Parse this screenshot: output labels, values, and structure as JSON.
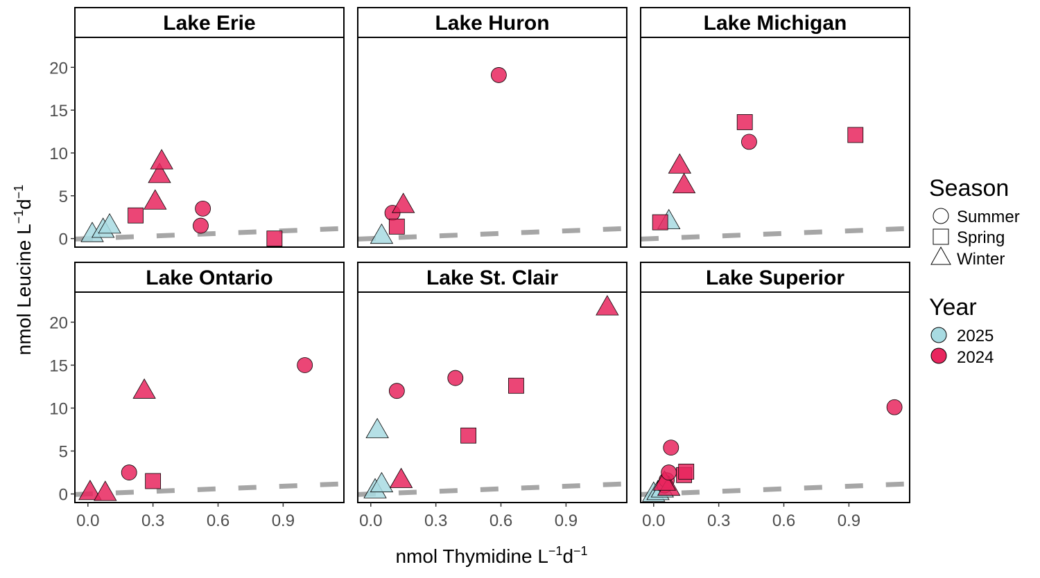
{
  "chart_data": {
    "type": "scatter",
    "xlabel": {
      "base": "nmol Thymidine L",
      "sup1": "−1",
      "mid": "d",
      "sup2": "−1"
    },
    "ylabel": {
      "base": "nmol Leucine L",
      "sup1": "−1",
      "mid": "d",
      "sup2": "−1"
    },
    "xlim": [
      -0.06,
      1.18
    ],
    "ylim": [
      -1.0,
      23.5
    ],
    "x_ticks": [
      "0.0",
      "0.3",
      "0.6",
      "0.9"
    ],
    "x_tick_values": [
      0.0,
      0.3,
      0.6,
      0.9
    ],
    "y_ticks": [
      "0",
      "5",
      "10",
      "15",
      "20"
    ],
    "y_tick_values": [
      0,
      5,
      10,
      15,
      20
    ],
    "reference_line": {
      "style": "dashed",
      "color": "#a6a6a6",
      "intercept": 0.0,
      "slope": 1.0
    },
    "legend": {
      "season_title": "Season",
      "season_items": [
        {
          "label": "Summer",
          "shape": "circle"
        },
        {
          "label": "Spring",
          "shape": "square"
        },
        {
          "label": "Winter",
          "shape": "triangle"
        }
      ],
      "year_title": "Year",
      "year_items": [
        {
          "label": "2025",
          "color": "#a8dbe2"
        },
        {
          "label": "2024",
          "color": "#e8265e"
        }
      ]
    },
    "panels": [
      {
        "title": "Lake Erie",
        "points": [
          {
            "x": 0.02,
            "y": 0.6,
            "season": "Winter",
            "year": "2025"
          },
          {
            "x": 0.07,
            "y": 1.1,
            "season": "Winter",
            "year": "2025"
          },
          {
            "x": 0.1,
            "y": 1.6,
            "season": "Winter",
            "year": "2025"
          },
          {
            "x": 0.22,
            "y": 2.7,
            "season": "Spring",
            "year": "2024"
          },
          {
            "x": 0.31,
            "y": 4.4,
            "season": "Winter",
            "year": "2024"
          },
          {
            "x": 0.33,
            "y": 7.5,
            "season": "Winter",
            "year": "2024"
          },
          {
            "x": 0.34,
            "y": 9.1,
            "season": "Winter",
            "year": "2024"
          },
          {
            "x": 0.52,
            "y": 1.5,
            "season": "Summer",
            "year": "2024"
          },
          {
            "x": 0.53,
            "y": 3.5,
            "season": "Summer",
            "year": "2024"
          },
          {
            "x": 0.86,
            "y": 0.0,
            "season": "Spring",
            "year": "2024"
          }
        ]
      },
      {
        "title": "Lake Huron",
        "points": [
          {
            "x": 0.05,
            "y": 0.4,
            "season": "Winter",
            "year": "2025"
          },
          {
            "x": 0.1,
            "y": 3.0,
            "season": "Summer",
            "year": "2024"
          },
          {
            "x": 0.12,
            "y": 1.4,
            "season": "Spring",
            "year": "2024"
          },
          {
            "x": 0.15,
            "y": 4.0,
            "season": "Winter",
            "year": "2024"
          },
          {
            "x": 0.59,
            "y": 19.1,
            "season": "Summer",
            "year": "2024"
          }
        ]
      },
      {
        "title": "Lake Michigan",
        "points": [
          {
            "x": 0.07,
            "y": 2.1,
            "season": "Winter",
            "year": "2025"
          },
          {
            "x": 0.03,
            "y": 1.9,
            "season": "Spring",
            "year": "2024"
          },
          {
            "x": 0.12,
            "y": 8.6,
            "season": "Winter",
            "year": "2024"
          },
          {
            "x": 0.14,
            "y": 6.3,
            "season": "Winter",
            "year": "2024"
          },
          {
            "x": 0.42,
            "y": 13.6,
            "season": "Spring",
            "year": "2024"
          },
          {
            "x": 0.44,
            "y": 11.3,
            "season": "Summer",
            "year": "2024"
          },
          {
            "x": 0.93,
            "y": 12.1,
            "season": "Spring",
            "year": "2024"
          }
        ]
      },
      {
        "title": "Lake Ontario",
        "points": [
          {
            "x": 0.01,
            "y": 0.3,
            "season": "Winter",
            "year": "2024"
          },
          {
            "x": 0.08,
            "y": 0.2,
            "season": "Winter",
            "year": "2024"
          },
          {
            "x": 0.19,
            "y": 2.5,
            "season": "Summer",
            "year": "2024"
          },
          {
            "x": 0.26,
            "y": 12.1,
            "season": "Winter",
            "year": "2024"
          },
          {
            "x": 0.3,
            "y": 1.5,
            "season": "Spring",
            "year": "2024"
          },
          {
            "x": 1.0,
            "y": 15.0,
            "season": "Summer",
            "year": "2024"
          }
        ]
      },
      {
        "title": "Lake St. Clair",
        "points": [
          {
            "x": 0.02,
            "y": 0.5,
            "season": "Winter",
            "year": "2025"
          },
          {
            "x": 0.05,
            "y": 1.2,
            "season": "Winter",
            "year": "2025"
          },
          {
            "x": 0.03,
            "y": 7.5,
            "season": "Winter",
            "year": "2025"
          },
          {
            "x": 0.12,
            "y": 12.0,
            "season": "Summer",
            "year": "2024"
          },
          {
            "x": 0.14,
            "y": 1.7,
            "season": "Winter",
            "year": "2024"
          },
          {
            "x": 0.39,
            "y": 13.5,
            "season": "Summer",
            "year": "2024"
          },
          {
            "x": 0.45,
            "y": 6.8,
            "season": "Spring",
            "year": "2024"
          },
          {
            "x": 0.67,
            "y": 12.6,
            "season": "Spring",
            "year": "2024"
          },
          {
            "x": 1.09,
            "y": 21.8,
            "season": "Winter",
            "year": "2024"
          }
        ]
      },
      {
        "title": "Lake Superior",
        "points": [
          {
            "x": 0.0,
            "y": 0.1,
            "season": "Winter",
            "year": "2025"
          },
          {
            "x": 0.02,
            "y": 0.3,
            "season": "Winter",
            "year": "2025"
          },
          {
            "x": 0.04,
            "y": 0.6,
            "season": "Winter",
            "year": "2025"
          },
          {
            "x": 0.05,
            "y": 1.0,
            "season": "Summer",
            "year": "2024"
          },
          {
            "x": 0.06,
            "y": 1.6,
            "season": "Summer",
            "year": "2024"
          },
          {
            "x": 0.07,
            "y": 0.8,
            "season": "Winter",
            "year": "2024"
          },
          {
            "x": 0.05,
            "y": 1.4,
            "season": "Winter",
            "year": "2024"
          },
          {
            "x": 0.07,
            "y": 2.5,
            "season": "Summer",
            "year": "2024"
          },
          {
            "x": 0.08,
            "y": 5.4,
            "season": "Summer",
            "year": "2024"
          },
          {
            "x": 0.14,
            "y": 2.2,
            "season": "Spring",
            "year": "2024"
          },
          {
            "x": 0.15,
            "y": 2.6,
            "season": "Spring",
            "year": "2024"
          },
          {
            "x": 1.11,
            "y": 10.1,
            "season": "Summer",
            "year": "2024"
          }
        ]
      }
    ]
  }
}
